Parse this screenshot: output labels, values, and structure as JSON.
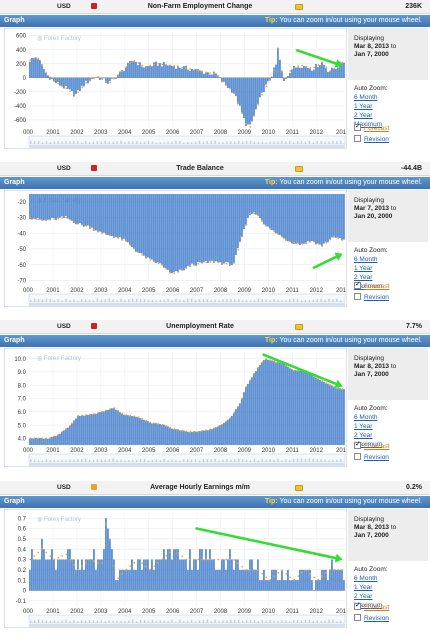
{
  "header": {
    "tip_prefix": "Tip:",
    "tip_text": "You can zoom in/out using your mouse wheel.",
    "graph_label": "Graph"
  },
  "sidebar": {
    "displaying_label": "Displaying",
    "to_label": "to",
    "auto_zoom_label": "Auto Zoom:",
    "zoom_options": [
      "6 Month",
      "1 Year",
      "2 Year",
      "Maximum"
    ],
    "forecast_label": "Forecast",
    "revision_label": "Revision"
  },
  "watermark": "Forex Factory",
  "panels": [
    {
      "currency": "USD",
      "impact_color": "#cc2222",
      "title": "Non-Farm Employment Change",
      "value": "236K",
      "range_start": "Mar 8, 2013",
      "range_end": "Jan 7, 2000",
      "forecast_checked": true,
      "revision_checked": false
    },
    {
      "currency": "USD",
      "impact_color": "#cc2222",
      "title": "Trade Balance",
      "value": "-44.4B",
      "range_start": "Mar 7, 2013",
      "range_end": "Jan 20, 2000",
      "forecast_checked": true,
      "revision_checked": false
    },
    {
      "currency": "USD",
      "impact_color": "#cc2222",
      "title": "Unemployment Rate",
      "value": "7.7%",
      "range_start": "Mar 8, 2013",
      "range_end": "Jan 7, 2000",
      "forecast_checked": true,
      "revision_checked": false
    },
    {
      "currency": "USD",
      "impact_color": "#f0a030",
      "title": "Average Hourly Earnings m/m",
      "value": "0.2%",
      "range_start": "Mar 8, 2013",
      "range_end": "Jan 7, 2000",
      "forecast_checked": true,
      "revision_checked": false
    }
  ],
  "colors": {
    "bar": "#3a78c9",
    "forecast": "#f0a030",
    "arrow": "#33dd33"
  },
  "chart_data": [
    {
      "type": "bar",
      "x_ticks": [
        "2001",
        "2002",
        "2003",
        "2004",
        "2005",
        "2006",
        "2007",
        "2008",
        "2009",
        "2010",
        "2011",
        "2012"
      ],
      "x_first": "000",
      "x_last": "201",
      "y_ticks": [
        600,
        400,
        200,
        0,
        -200,
        -400,
        -600
      ],
      "ylim": [
        -700,
        650
      ],
      "keypoints": [
        [
          2000.0,
          250
        ],
        [
          2000.3,
          300
        ],
        [
          2000.7,
          50
        ],
        [
          2001.0,
          -50
        ],
        [
          2001.5,
          -150
        ],
        [
          2001.9,
          -250
        ],
        [
          2002.3,
          -80
        ],
        [
          2002.8,
          20
        ],
        [
          2003.3,
          -80
        ],
        [
          2003.8,
          80
        ],
        [
          2004.3,
          250
        ],
        [
          2004.8,
          150
        ],
        [
          2005.3,
          200
        ],
        [
          2005.8,
          180
        ],
        [
          2006.3,
          150
        ],
        [
          2006.8,
          120
        ],
        [
          2007.3,
          80
        ],
        [
          2007.8,
          50
        ],
        [
          2008.0,
          -50
        ],
        [
          2008.5,
          -200
        ],
        [
          2008.8,
          -450
        ],
        [
          2009.0,
          -650
        ],
        [
          2009.2,
          -700
        ],
        [
          2009.5,
          -400
        ],
        [
          2009.8,
          -150
        ],
        [
          2010.0,
          -50
        ],
        [
          2010.3,
          200
        ],
        [
          2010.35,
          430
        ],
        [
          2010.6,
          -60
        ],
        [
          2010.9,
          120
        ],
        [
          2011.3,
          180
        ],
        [
          2011.8,
          130
        ],
        [
          2012.2,
          220
        ],
        [
          2012.5,
          90
        ],
        [
          2012.8,
          150
        ],
        [
          2013.1,
          236
        ]
      ]
    },
    {
      "type": "bar",
      "x_ticks": [
        "2001",
        "2002",
        "2003",
        "2004",
        "2005",
        "2006",
        "2007",
        "2008",
        "2009",
        "2010",
        "2011",
        "2012"
      ],
      "x_first": "000",
      "x_last": "201",
      "y_ticks": [
        -20,
        -30,
        -40,
        -50,
        -60,
        -70
      ],
      "ylim": [
        -73,
        -15
      ],
      "keypoints": [
        [
          2000.0,
          -30
        ],
        [
          2000.6,
          -32
        ],
        [
          2001.0,
          -31
        ],
        [
          2001.5,
          -30
        ],
        [
          2002.0,
          -34
        ],
        [
          2002.5,
          -36
        ],
        [
          2003.0,
          -40
        ],
        [
          2003.5,
          -42
        ],
        [
          2004.0,
          -45
        ],
        [
          2004.5,
          -52
        ],
        [
          2005.0,
          -57
        ],
        [
          2005.5,
          -60
        ],
        [
          2005.9,
          -66
        ],
        [
          2006.3,
          -64
        ],
        [
          2006.8,
          -60
        ],
        [
          2007.2,
          -59
        ],
        [
          2007.7,
          -58
        ],
        [
          2008.0,
          -59
        ],
        [
          2008.5,
          -60
        ],
        [
          2008.9,
          -40
        ],
        [
          2009.2,
          -27
        ],
        [
          2009.5,
          -28
        ],
        [
          2009.9,
          -36
        ],
        [
          2010.3,
          -40
        ],
        [
          2010.8,
          -45
        ],
        [
          2011.3,
          -47
        ],
        [
          2011.8,
          -45
        ],
        [
          2012.2,
          -48
        ],
        [
          2012.7,
          -42
        ],
        [
          2013.0,
          -44.4
        ]
      ]
    },
    {
      "type": "bar",
      "x_ticks": [
        "2001",
        "2002",
        "2003",
        "2004",
        "2005",
        "2006",
        "2007",
        "2008",
        "2009",
        "2010",
        "2011",
        "2012"
      ],
      "x_first": "000",
      "x_last": "201",
      "y_ticks": [
        10.0,
        9.0,
        8.0,
        7.0,
        6.0,
        5.0,
        4.0
      ],
      "ylim": [
        3.5,
        10.5
      ],
      "keypoints": [
        [
          2000.0,
          4.0
        ],
        [
          2000.8,
          4.0
        ],
        [
          2001.2,
          4.3
        ],
        [
          2001.7,
          5.0
        ],
        [
          2002.0,
          5.7
        ],
        [
          2002.6,
          5.8
        ],
        [
          2003.0,
          6.0
        ],
        [
          2003.5,
          6.3
        ],
        [
          2003.9,
          5.8
        ],
        [
          2004.5,
          5.6
        ],
        [
          2005.0,
          5.2
        ],
        [
          2005.6,
          5.0
        ],
        [
          2006.0,
          4.7
        ],
        [
          2006.6,
          4.5
        ],
        [
          2007.0,
          4.5
        ],
        [
          2007.6,
          4.7
        ],
        [
          2008.0,
          5.0
        ],
        [
          2008.4,
          5.6
        ],
        [
          2008.8,
          6.7
        ],
        [
          2009.0,
          7.8
        ],
        [
          2009.4,
          9.0
        ],
        [
          2009.8,
          10.0
        ],
        [
          2010.2,
          9.8
        ],
        [
          2010.6,
          9.6
        ],
        [
          2011.0,
          9.1
        ],
        [
          2011.5,
          9.1
        ],
        [
          2011.9,
          8.6
        ],
        [
          2012.3,
          8.2
        ],
        [
          2012.8,
          7.8
        ],
        [
          2013.1,
          7.7
        ]
      ]
    },
    {
      "type": "bar",
      "x_ticks": [
        "2001",
        "2002",
        "2003",
        "2004",
        "2005",
        "2006",
        "2007",
        "2008",
        "2009",
        "2010",
        "2011",
        "2012"
      ],
      "x_first": "000",
      "x_last": "201",
      "y_ticks": [
        0.7,
        0.6,
        0.5,
        0.4,
        0.3,
        0.2,
        0.1,
        0.0,
        -0.1
      ],
      "ylim": [
        -0.15,
        0.75
      ],
      "keypoints": [
        [
          2000.0,
          0.3
        ],
        [
          2000.5,
          0.4
        ],
        [
          2001.0,
          0.3
        ],
        [
          2001.5,
          0.35
        ],
        [
          2002.0,
          0.2
        ],
        [
          2002.5,
          0.3
        ],
        [
          2003.0,
          0.25
        ],
        [
          2003.2,
          0.7
        ],
        [
          2003.6,
          0.1
        ],
        [
          2004.0,
          0.2
        ],
        [
          2004.5,
          0.3
        ],
        [
          2005.0,
          0.2
        ],
        [
          2005.5,
          0.3
        ],
        [
          2006.0,
          0.4
        ],
        [
          2006.5,
          0.3
        ],
        [
          2007.0,
          0.3
        ],
        [
          2007.5,
          0.3
        ],
        [
          2008.0,
          0.3
        ],
        [
          2008.5,
          0.3
        ],
        [
          2009.0,
          0.2
        ],
        [
          2009.5,
          0.2
        ],
        [
          2010.0,
          0.1
        ],
        [
          2010.5,
          0.2
        ],
        [
          2011.0,
          0.1
        ],
        [
          2011.5,
          0.2
        ],
        [
          2012.0,
          0.1
        ],
        [
          2012.5,
          0.2
        ],
        [
          2013.1,
          0.2
        ]
      ]
    }
  ]
}
